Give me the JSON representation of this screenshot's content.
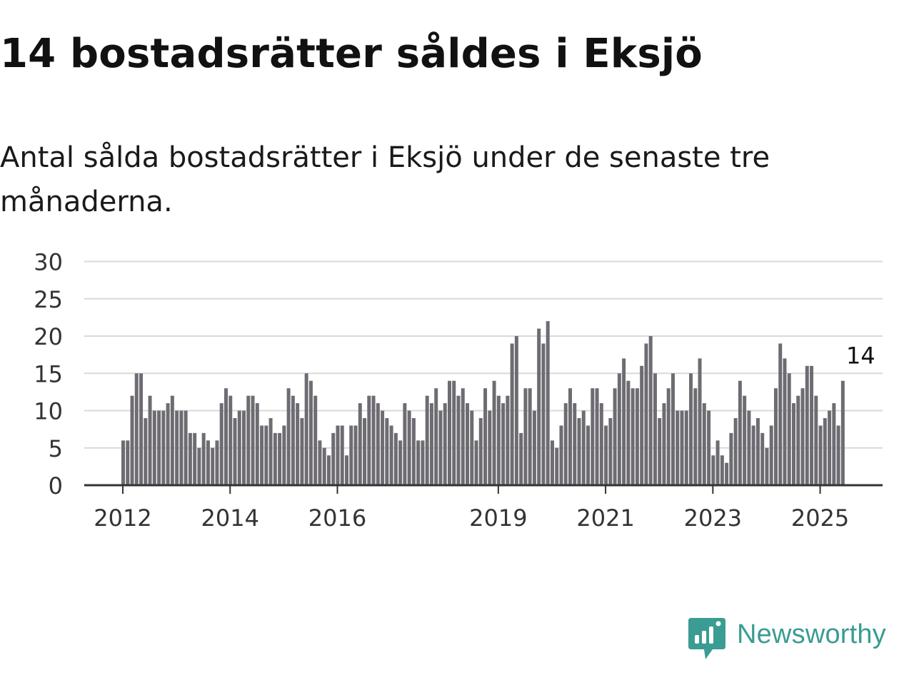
{
  "page": {
    "title": "14 bostadsrätter såldes i Eksjö",
    "subtitle": "Antal sålda bostadsrätter i Eksjö under de senaste tre månaderna."
  },
  "brand": {
    "name": "Newsworthy",
    "icon": "newsworthy-logo-icon",
    "color": "#3a9c92"
  },
  "colors": {
    "bar": "#6e6c72",
    "highlight": "#1a9e94",
    "grid": "#d9d9d9",
    "axis": "#333333",
    "tick_label": "#333333"
  },
  "chart_data": {
    "type": "bar",
    "title": "",
    "xlabel": "",
    "ylabel": "",
    "ylim": [
      0,
      30
    ],
    "y_ticks": [
      0,
      5,
      10,
      15,
      20,
      25,
      30
    ],
    "grid": true,
    "x_ticks": [
      "2012",
      "2014",
      "2016",
      "2019",
      "2021",
      "2023",
      "2025"
    ],
    "start": "2012-01",
    "values": [
      6,
      6,
      12,
      15,
      15,
      9,
      12,
      10,
      10,
      10,
      11,
      12,
      10,
      10,
      10,
      7,
      7,
      5,
      7,
      6,
      5,
      6,
      11,
      13,
      12,
      9,
      10,
      10,
      12,
      12,
      11,
      8,
      8,
      9,
      7,
      7,
      8,
      13,
      12,
      11,
      9,
      15,
      14,
      12,
      6,
      5,
      4,
      7,
      8,
      8,
      4,
      8,
      8,
      11,
      9,
      12,
      12,
      11,
      10,
      9,
      8,
      7,
      6,
      11,
      10,
      9,
      6,
      6,
      12,
      11,
      13,
      10,
      11,
      14,
      14,
      12,
      13,
      11,
      10,
      6,
      9,
      13,
      10,
      14,
      12,
      11,
      12,
      19,
      20,
      7,
      13,
      13,
      10,
      21,
      19,
      22,
      6,
      5,
      8,
      11,
      13,
      11,
      9,
      10,
      8,
      13,
      13,
      11,
      8,
      9,
      13,
      15,
      17,
      14,
      13,
      13,
      16,
      19,
      20,
      15,
      9,
      11,
      13,
      15,
      10,
      10,
      10,
      15,
      13,
      17,
      11,
      10,
      4,
      6,
      4,
      3,
      7,
      9,
      14,
      12,
      10,
      8,
      9,
      7,
      5,
      8,
      13,
      19,
      17,
      15,
      11,
      12,
      13,
      16,
      16,
      12,
      8,
      9,
      10,
      11,
      8,
      14
    ],
    "highlight": {
      "index": 165,
      "value": 14,
      "label": "14"
    }
  }
}
